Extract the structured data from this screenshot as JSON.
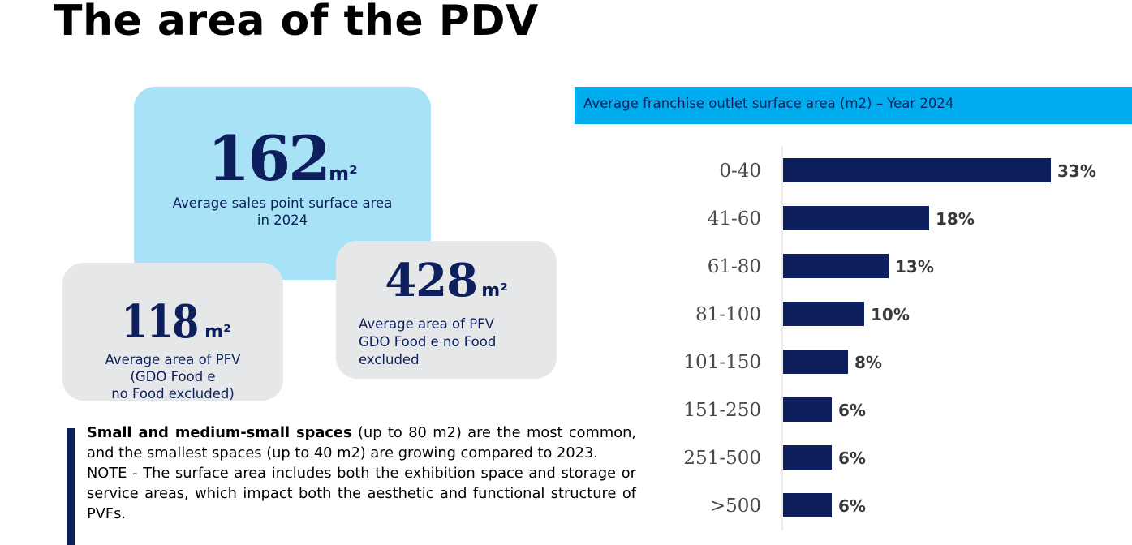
{
  "page": {
    "title": "The area of the PDV"
  },
  "cards": {
    "main": {
      "value": "162",
      "unit": "m²",
      "caption_lines": [
        "Average sales point surface area",
        "in 2024"
      ]
    },
    "left": {
      "value": "118",
      "unit": "m²",
      "caption_lines": [
        "Average area of PFV",
        "(GDO Food e",
        "no Food excluded)"
      ]
    },
    "right": {
      "value": "428",
      "unit": "m²",
      "caption_lines": [
        "Average area of PFV",
        "GDO Food e no Food",
        "excluded"
      ]
    }
  },
  "note": {
    "p1_bold": "Small and medium-small spaces",
    "p1_rest": " (up to 80 m2) are the most common, and the smallest spaces (up to 40 m2) are growing compared to 2023.",
    "p2": "NOTE - The surface area includes both the exhibition space and storage or service areas, which impact both the aesthetic and functional structure of PVFs."
  },
  "colors": {
    "bar": "#0d1f5c",
    "header": "#00aeef",
    "card_main": "#a8e2f6",
    "card_secondary": "#e6e7e8",
    "text_dark": "#0d1f5c",
    "value_label": "#3a3a3a",
    "category_label": "#4a4a4a"
  },
  "chart_data": {
    "type": "bar",
    "orientation": "horizontal",
    "title": "Average franchise outlet surface area (m2) – Year 2024",
    "categories": [
      "0-40",
      "41-60",
      "61-80",
      "81-100",
      "101-150",
      "151-250",
      "251-500",
      ">500"
    ],
    "values": [
      33,
      18,
      13,
      10,
      8,
      6,
      6,
      6
    ],
    "value_labels": [
      "33%",
      "18%",
      "13%",
      "10%",
      "8%",
      "6%",
      "6%",
      "6%"
    ],
    "unit": "%",
    "xlim": [
      0,
      33
    ],
    "grid": false,
    "legend": "none"
  }
}
